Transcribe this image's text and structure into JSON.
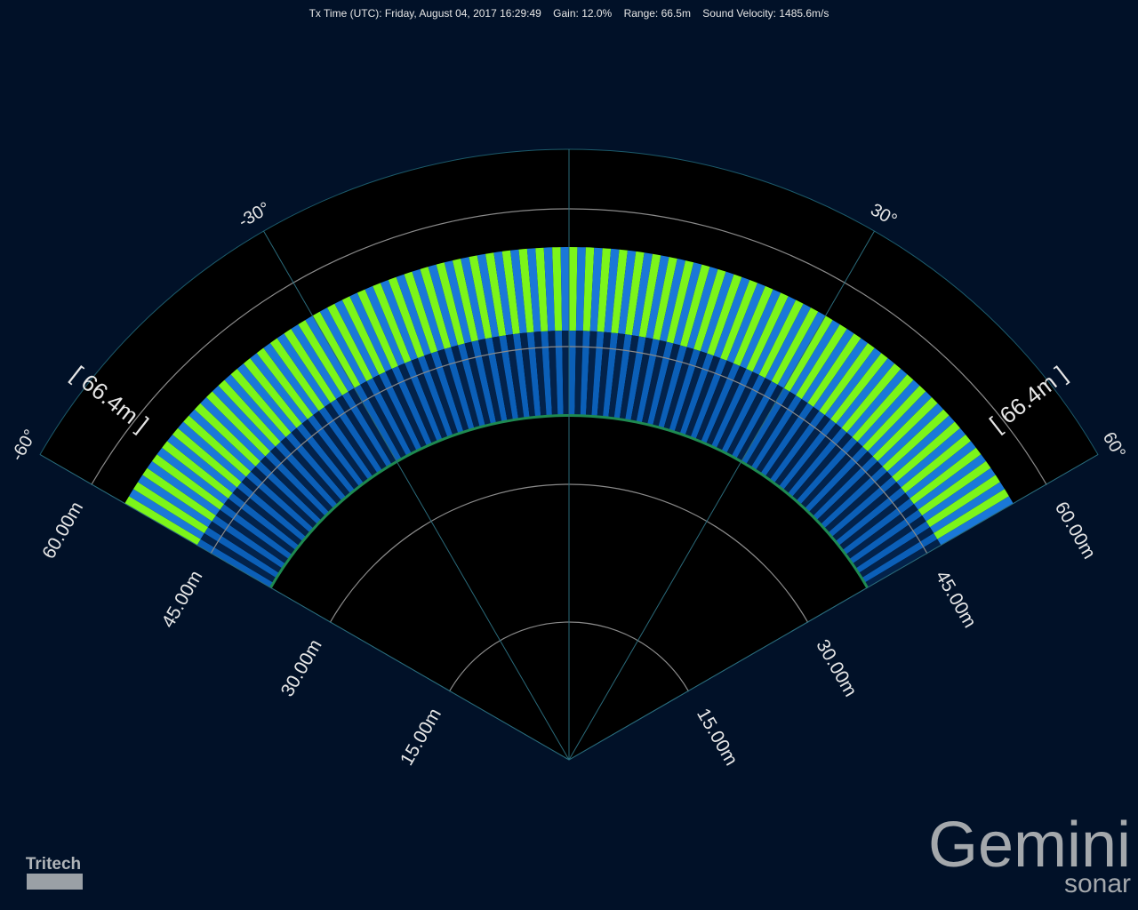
{
  "header": {
    "tx_time": "Tx Time (UTC): Friday, August 04, 2017 16:29:49",
    "gain": "Gain: 12.0%",
    "range": "Range: 66.5m",
    "sound_velocity": "Sound Velocity: 1485.6m/s"
  },
  "sonar": {
    "angle_labels": [
      "-60°",
      "-30°",
      "30°",
      "60°"
    ],
    "range_labels_left": [
      "15.00m",
      "30.00m",
      "45.00m",
      "60.00m"
    ],
    "range_labels_right": [
      "15.00m",
      "30.00m",
      "45.00m",
      "60.00m"
    ],
    "range_marker_left": "[ 66.4m ]",
    "range_marker_right": "[ 66.4m ]"
  },
  "logos": {
    "tritech": "Tritech",
    "gemini": "Gemini",
    "sonar": "sonar"
  }
}
